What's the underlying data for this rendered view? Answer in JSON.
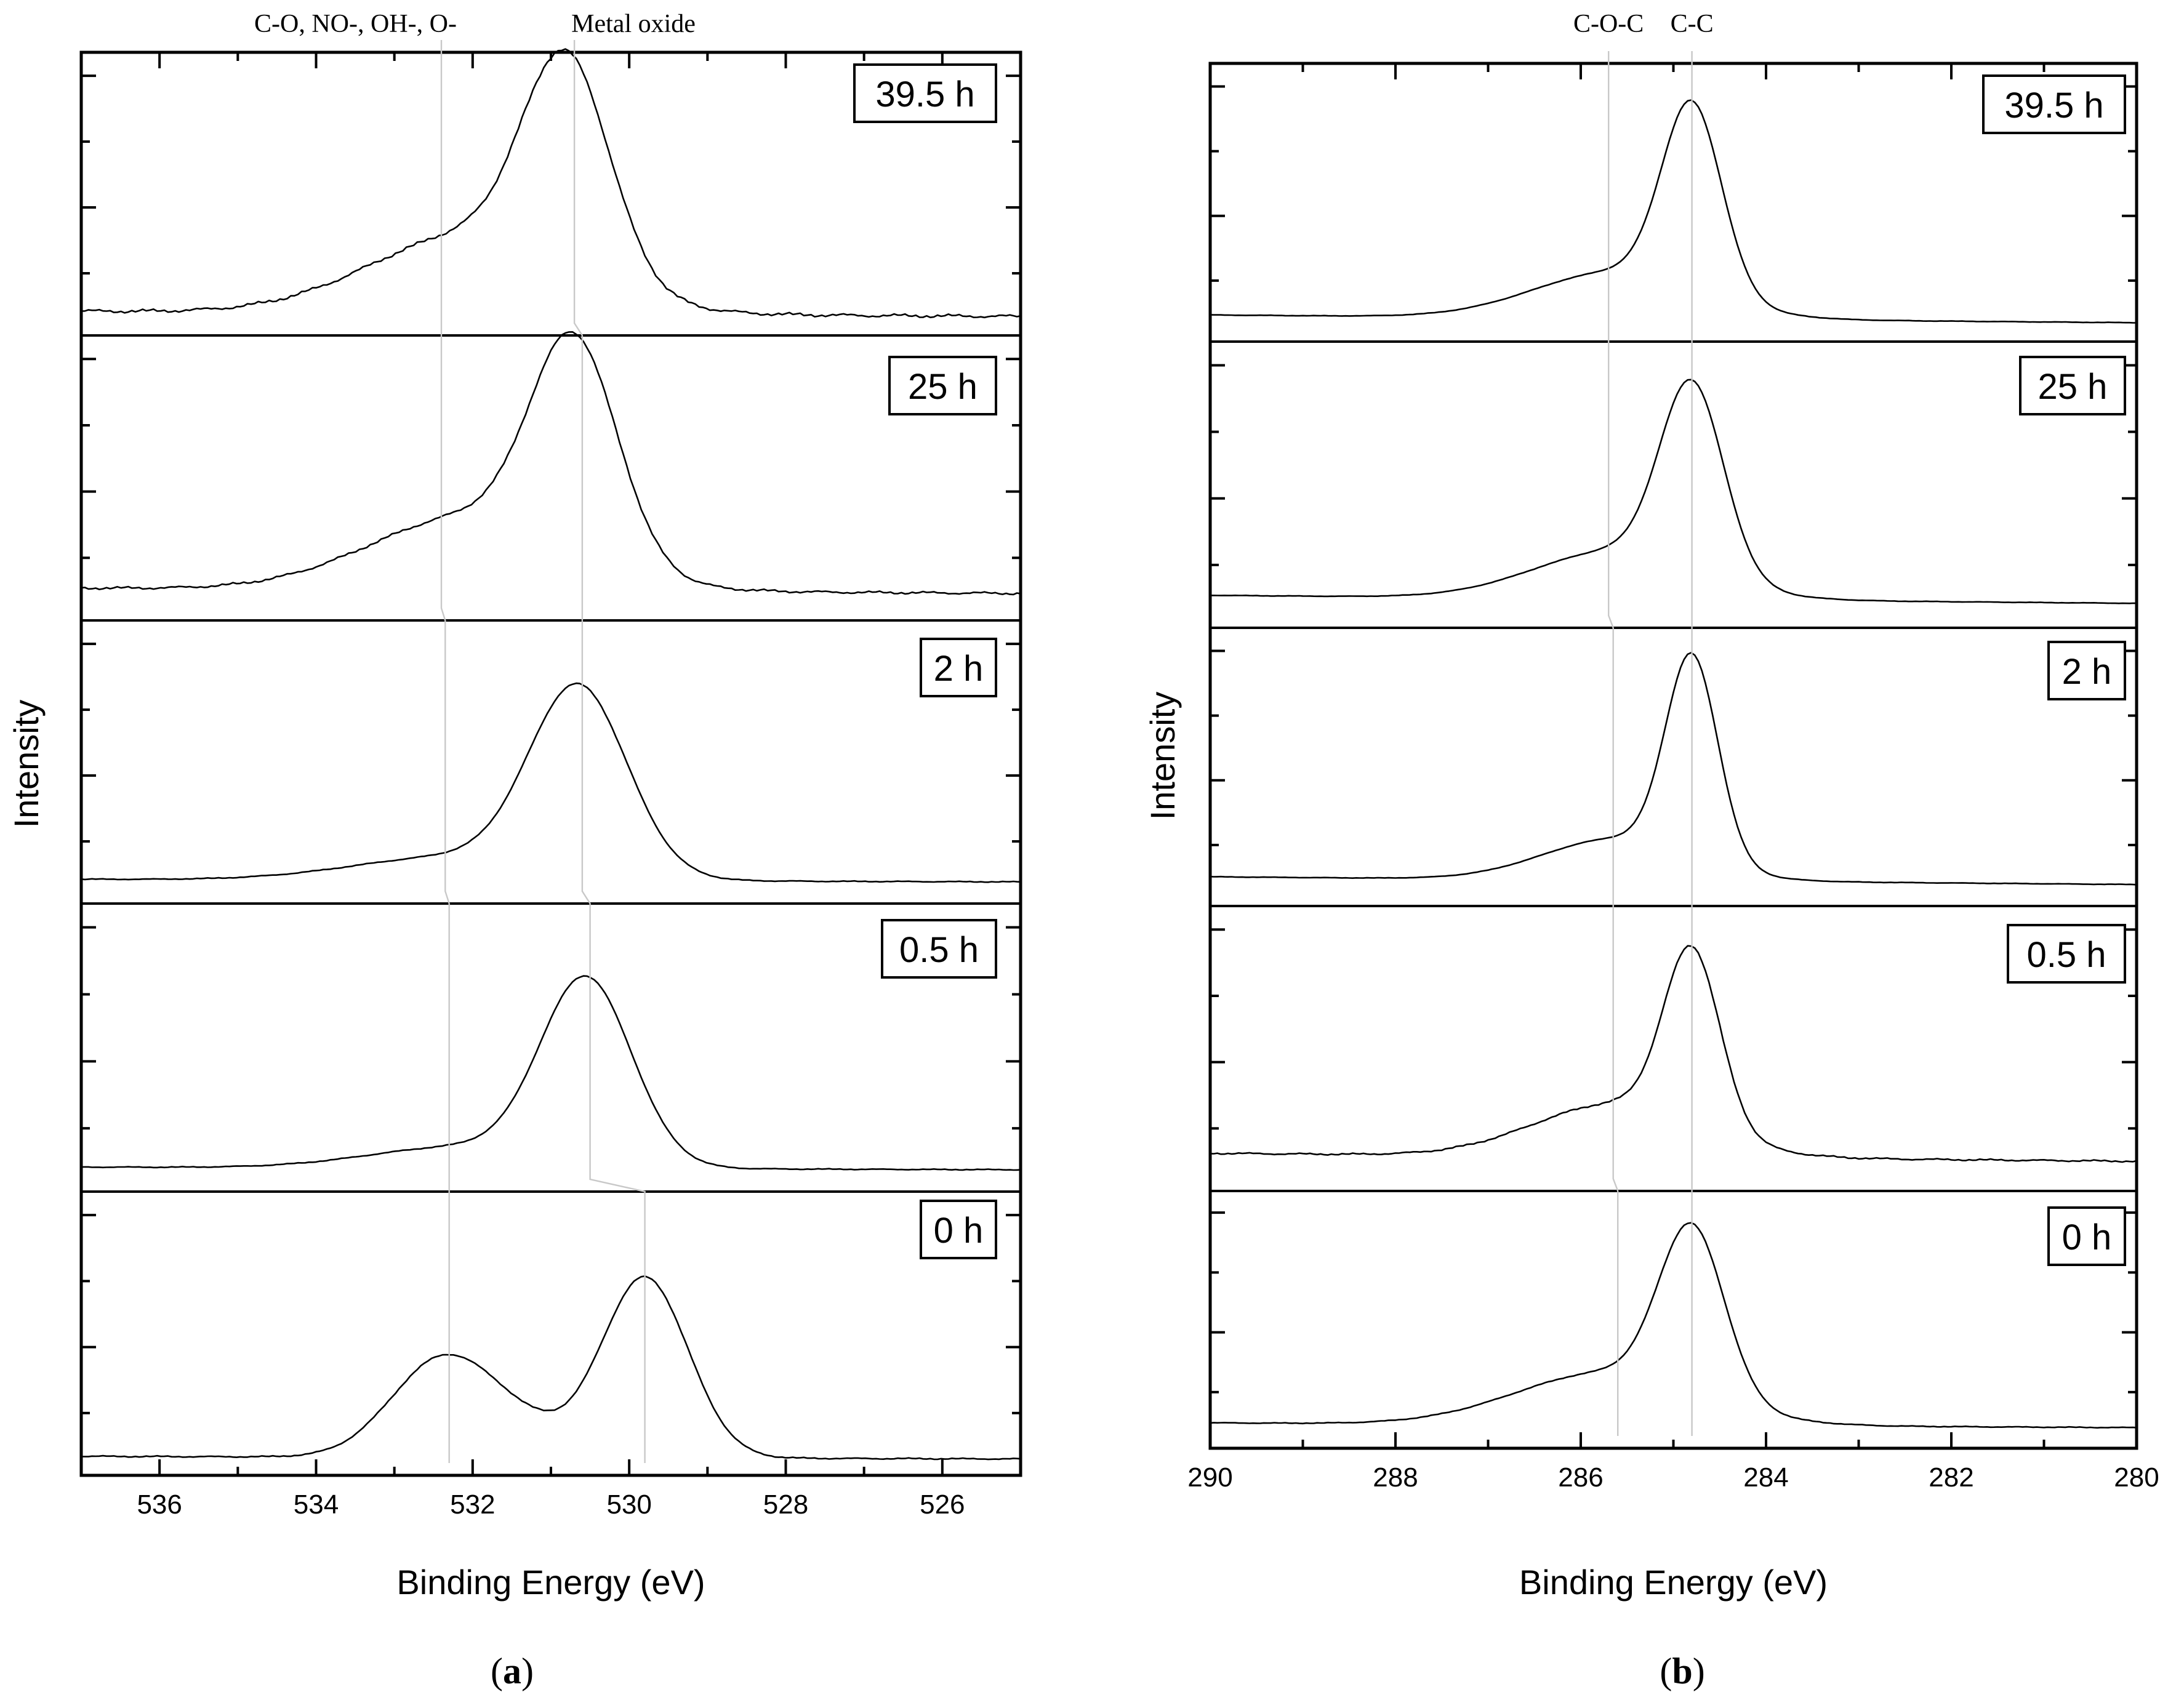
{
  "chart_data": [
    {
      "panel": "a",
      "type": "line",
      "xlabel": "Binding Energy (eV)",
      "ylabel": "Intensity",
      "xlim": [
        537,
        525
      ],
      "xticks": [
        536,
        534,
        532,
        530,
        528,
        526
      ],
      "peak_markers": [
        {
          "label": "C-O, NO-, OH-, O-",
          "energy_by_time": [
            532.4,
            532.4,
            532.35,
            532.3,
            532.3
          ]
        },
        {
          "label": "Metal oxide",
          "energy_by_time": [
            530.7,
            530.6,
            530.6,
            530.5,
            529.8
          ]
        }
      ],
      "series": [
        {
          "name": "39.5 h",
          "peaks": [
            {
              "center": 530.8,
              "height": 0.8,
              "width": 0.55
            },
            {
              "center": 532.0,
              "height": 0.3,
              "width": 1.3
            }
          ],
          "baseline_left": 0.05,
          "baseline_right": 0.03,
          "noise": 0.008
        },
        {
          "name": "25 h",
          "peaks": [
            {
              "center": 530.7,
              "height": 0.8,
              "width": 0.55
            },
            {
              "center": 532.0,
              "height": 0.28,
              "width": 1.3
            }
          ],
          "baseline_left": 0.08,
          "baseline_right": 0.06,
          "noise": 0.006
        },
        {
          "name": "2 h",
          "peaks": [
            {
              "center": 530.65,
              "height": 0.7,
              "width": 0.62
            },
            {
              "center": 532.2,
              "height": 0.09,
              "width": 1.3
            }
          ],
          "baseline_left": 0.05,
          "baseline_right": 0.04,
          "noise": 0.002
        },
        {
          "name": "0.5 h",
          "peaks": [
            {
              "center": 530.55,
              "height": 0.68,
              "width": 0.58
            },
            {
              "center": 532.1,
              "height": 0.08,
              "width": 1.2
            }
          ],
          "baseline_left": 0.05,
          "baseline_right": 0.04,
          "noise": 0.002
        },
        {
          "name": "0 h",
          "peaks": [
            {
              "center": 529.8,
              "height": 0.68,
              "width": 0.55
            },
            {
              "center": 532.4,
              "height": 0.36,
              "width": 0.65
            },
            {
              "center": 531.4,
              "height": 0.1,
              "width": 0.6
            }
          ],
          "baseline_left": 0.03,
          "baseline_right": 0.02,
          "noise": 0.003
        }
      ]
    },
    {
      "panel": "b",
      "type": "line",
      "xlabel": "Binding Energy (eV)",
      "ylabel": "Intensity",
      "xlim": [
        290,
        280
      ],
      "xticks": [
        290,
        288,
        286,
        284,
        282,
        280
      ],
      "peak_markers": [
        {
          "label": "C-O-C",
          "energy_by_time": [
            285.7,
            285.7,
            285.65,
            285.65,
            285.6
          ]
        },
        {
          "label": "C-C",
          "energy_by_time": [
            284.8,
            284.8,
            284.8,
            284.8,
            284.8
          ]
        }
      ],
      "series": [
        {
          "name": "39.5 h",
          "peaks": [
            {
              "center": 284.8,
              "height": 0.72,
              "width": 0.32
            },
            {
              "center": 285.6,
              "height": 0.18,
              "width": 0.9
            }
          ],
          "baseline_left": 0.06,
          "baseline_right": 0.03,
          "noise": 0.001
        },
        {
          "name": "25 h",
          "peaks": [
            {
              "center": 284.8,
              "height": 0.7,
              "width": 0.34
            },
            {
              "center": 285.6,
              "height": 0.18,
              "width": 0.9
            }
          ],
          "baseline_left": 0.08,
          "baseline_right": 0.05,
          "noise": 0.001
        },
        {
          "name": "2 h",
          "peaks": [
            {
              "center": 284.8,
              "height": 0.78,
              "width": 0.28
            },
            {
              "center": 285.6,
              "height": 0.16,
              "width": 0.8
            }
          ],
          "baseline_left": 0.07,
          "baseline_right": 0.04,
          "noise": 0.001
        },
        {
          "name": "0.5 h",
          "peaks": [
            {
              "center": 284.8,
              "height": 0.66,
              "width": 0.3
            },
            {
              "center": 285.6,
              "height": 0.2,
              "width": 0.9
            }
          ],
          "baseline_left": 0.1,
          "baseline_right": 0.07,
          "noise": 0.004
        },
        {
          "name": "0 h",
          "peaks": [
            {
              "center": 284.8,
              "height": 0.7,
              "width": 0.35
            },
            {
              "center": 285.7,
              "height": 0.22,
              "width": 1.0
            }
          ],
          "baseline_left": 0.06,
          "baseline_right": 0.04,
          "noise": 0.002
        }
      ]
    }
  ],
  "captions": {
    "a": "(a)",
    "b": "(b)"
  }
}
